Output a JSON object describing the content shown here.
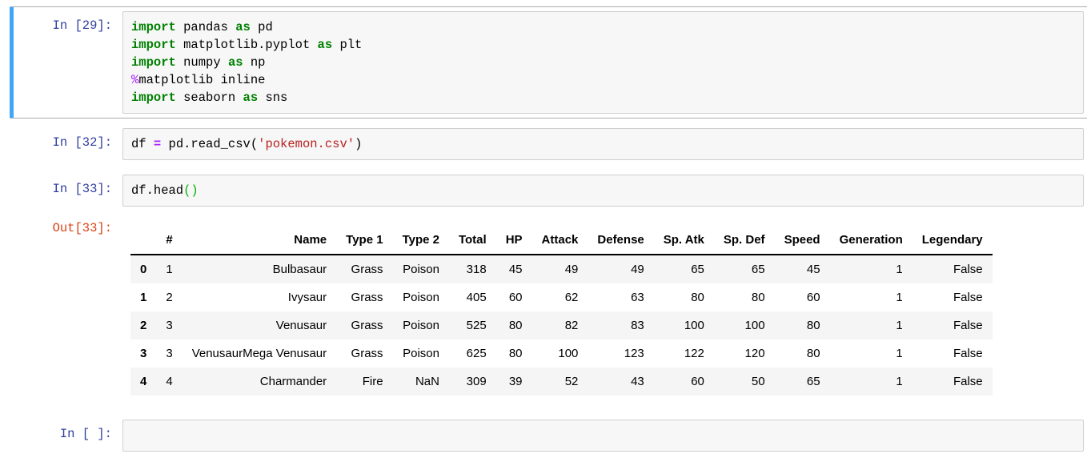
{
  "colors": {
    "selection-accent": "#42A5F5",
    "cell-border": "#ABABAB",
    "prompt-in": "#303F9F",
    "prompt-out": "#D84315",
    "syntax-keyword": "#008000",
    "syntax-operator": "#AA22FF",
    "syntax-string": "#BA2121",
    "syntax-magic": "#AA22FF",
    "syntax-bracket-match": "#00B300",
    "input-bg": "#F7F7F7",
    "input-border": "#CFCFCF",
    "row-stripe": "#F5F5F5"
  },
  "cells": [
    {
      "prompt": "In [29]:",
      "selected": true,
      "code": [
        [
          [
            "kw",
            "import"
          ],
          [
            "pl",
            " pandas "
          ],
          [
            "kw",
            "as"
          ],
          [
            "pl",
            " pd"
          ]
        ],
        [
          [
            "kw",
            "import"
          ],
          [
            "pl",
            " matplotlib.pyplot "
          ],
          [
            "kw",
            "as"
          ],
          [
            "pl",
            " plt"
          ]
        ],
        [
          [
            "kw",
            "import"
          ],
          [
            "pl",
            " numpy "
          ],
          [
            "kw",
            "as"
          ],
          [
            "pl",
            " np"
          ]
        ],
        [
          [
            "magic",
            "%"
          ],
          [
            "pl",
            "matplotlib inline"
          ]
        ],
        [
          [
            "kw",
            "import"
          ],
          [
            "pl",
            " seaborn "
          ],
          [
            "kw",
            "as"
          ],
          [
            "pl",
            " sns"
          ]
        ]
      ]
    },
    {
      "prompt": "In [32]:",
      "selected": false,
      "code": [
        [
          [
            "pl",
            "df "
          ],
          [
            "op",
            "="
          ],
          [
            "pl",
            " pd.read_csv("
          ],
          [
            "str",
            "'pokemon.csv'"
          ],
          [
            "pl",
            ")"
          ]
        ]
      ]
    },
    {
      "prompt": "In [33]:",
      "selected": false,
      "code": [
        [
          [
            "pl",
            "df.head"
          ],
          [
            "br",
            "()"
          ]
        ]
      ],
      "output": {
        "prompt": "Out[33]:",
        "table": {
          "columns": [
            "",
            "#",
            "Name",
            "Type 1",
            "Type 2",
            "Total",
            "HP",
            "Attack",
            "Defense",
            "Sp. Atk",
            "Sp. Def",
            "Speed",
            "Generation",
            "Legendary"
          ],
          "rows": [
            [
              "0",
              "1",
              "Bulbasaur",
              "Grass",
              "Poison",
              "318",
              "45",
              "49",
              "49",
              "65",
              "65",
              "45",
              "1",
              "False"
            ],
            [
              "1",
              "2",
              "Ivysaur",
              "Grass",
              "Poison",
              "405",
              "60",
              "62",
              "63",
              "80",
              "80",
              "60",
              "1",
              "False"
            ],
            [
              "2",
              "3",
              "Venusaur",
              "Grass",
              "Poison",
              "525",
              "80",
              "82",
              "83",
              "100",
              "100",
              "80",
              "1",
              "False"
            ],
            [
              "3",
              "3",
              "VenusaurMega Venusaur",
              "Grass",
              "Poison",
              "625",
              "80",
              "100",
              "123",
              "122",
              "120",
              "80",
              "1",
              "False"
            ],
            [
              "4",
              "4",
              "Charmander",
              "Fire",
              "NaN",
              "309",
              "39",
              "52",
              "43",
              "60",
              "50",
              "65",
              "1",
              "False"
            ]
          ]
        }
      }
    },
    {
      "prompt": "In [ ]:",
      "selected": false,
      "code": []
    }
  ]
}
